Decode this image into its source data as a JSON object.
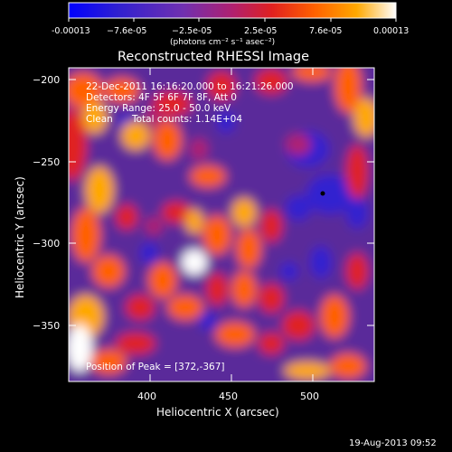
{
  "colorbar": {
    "ticks": [
      "-0.00013",
      "−7.6e-05",
      "−2.5e-05",
      "2.5e-05",
      "7.6e-05",
      "0.00013"
    ],
    "units": "(photons cm⁻² s⁻¹ asec⁻²)",
    "stops": [
      "#0000ff",
      "#3020d0",
      "#7030b0",
      "#b02070",
      "#e02020",
      "#ff6000",
      "#ffa800",
      "#ffffff"
    ]
  },
  "plot": {
    "title": "Reconstructed RHESSI Image",
    "xlabel": "Heliocentric X (arcsec)",
    "ylabel": "Heliocentric Y (arcsec)",
    "x_ticks": [
      "400",
      "450",
      "500"
    ],
    "y_ticks": [
      "−200",
      "−250",
      "−300",
      "−350"
    ],
    "xlim": [
      352,
      540
    ],
    "ylim": [
      -384,
      -183
    ]
  },
  "annotations": {
    "time_range": "22-Dec-2011 16:16:20.000 to 16:21:26.000",
    "detectors": "Detectors: 4F 5F 6F 7F 8F, Att 0",
    "energy": "Energy Range: 25.0 - 50.0 keV",
    "clean": "Clean",
    "counts": "Total counts: 1.14E+04",
    "peak": "Position of Peak = [372,-367]"
  },
  "footer": {
    "date": "19-Aug-2013 09:52"
  }
}
